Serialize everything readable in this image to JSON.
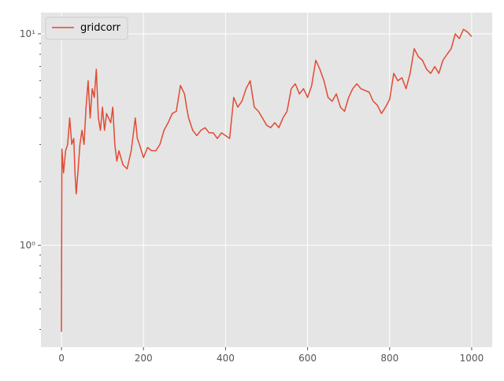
{
  "chart_data": {
    "type": "line",
    "log_y": true,
    "grid": true,
    "legend": "upper left",
    "xlim": [
      -50,
      1050
    ],
    "ylim": [
      0.33,
      12.6
    ],
    "xticks": [
      0,
      200,
      400,
      600,
      800,
      1000
    ],
    "yticks": [
      {
        "value": 1,
        "label": "10⁰"
      },
      {
        "value": 10,
        "label": "10¹"
      }
    ],
    "yminorticks": [
      0.4,
      0.5,
      0.6,
      0.7,
      0.8,
      0.9,
      2,
      3,
      4,
      5,
      6,
      7,
      8,
      9
    ],
    "x": [
      0,
      1,
      5,
      10,
      15,
      20,
      25,
      30,
      33,
      36,
      40,
      45,
      50,
      55,
      60,
      65,
      70,
      75,
      80,
      85,
      90,
      95,
      100,
      105,
      110,
      120,
      125,
      130,
      135,
      140,
      150,
      160,
      170,
      180,
      185,
      190,
      200,
      210,
      220,
      230,
      240,
      250,
      260,
      270,
      280,
      290,
      300,
      305,
      310,
      320,
      330,
      340,
      350,
      360,
      370,
      380,
      390,
      400,
      410,
      415,
      420,
      430,
      440,
      450,
      460,
      470,
      480,
      490,
      500,
      510,
      520,
      530,
      540,
      550,
      560,
      570,
      580,
      590,
      600,
      610,
      620,
      630,
      640,
      650,
      660,
      670,
      680,
      690,
      700,
      710,
      720,
      730,
      740,
      750,
      760,
      770,
      780,
      790,
      800,
      810,
      820,
      830,
      840,
      850,
      860,
      870,
      880,
      890,
      900,
      910,
      920,
      930,
      940,
      950,
      960,
      970,
      980,
      990,
      1000
    ],
    "series": [
      {
        "name": "gridcorr",
        "color": "#e24a33",
        "values": [
          0.39,
          2.85,
          2.2,
          2.8,
          3.0,
          4.0,
          3.0,
          3.2,
          2.2,
          1.75,
          2.2,
          3.0,
          3.5,
          3.0,
          4.5,
          6.0,
          4.0,
          5.5,
          5.0,
          6.8,
          4.0,
          3.5,
          4.5,
          3.5,
          4.2,
          3.8,
          4.5,
          3.0,
          2.5,
          2.8,
          2.4,
          2.3,
          2.8,
          4.0,
          3.2,
          3.0,
          2.6,
          2.9,
          2.8,
          2.8,
          3.0,
          3.5,
          3.8,
          4.2,
          4.3,
          5.7,
          5.2,
          4.5,
          4.0,
          3.5,
          3.3,
          3.5,
          3.6,
          3.4,
          3.4,
          3.2,
          3.4,
          3.3,
          3.2,
          4.0,
          5.0,
          4.5,
          4.8,
          5.5,
          6.0,
          4.5,
          4.3,
          4.0,
          3.7,
          3.6,
          3.8,
          3.6,
          4.0,
          4.3,
          5.5,
          5.8,
          5.2,
          5.5,
          5.0,
          5.7,
          7.5,
          6.8,
          6.0,
          5.0,
          4.8,
          5.2,
          4.5,
          4.3,
          5.0,
          5.5,
          5.8,
          5.5,
          5.4,
          5.3,
          4.8,
          4.6,
          4.2,
          4.5,
          4.9,
          6.5,
          6.0,
          6.2,
          5.5,
          6.5,
          8.5,
          7.8,
          7.5,
          6.8,
          6.5,
          7.0,
          6.5,
          7.5,
          8.0,
          8.5,
          10.0,
          9.5,
          10.5,
          10.2,
          9.7
        ]
      }
    ]
  }
}
